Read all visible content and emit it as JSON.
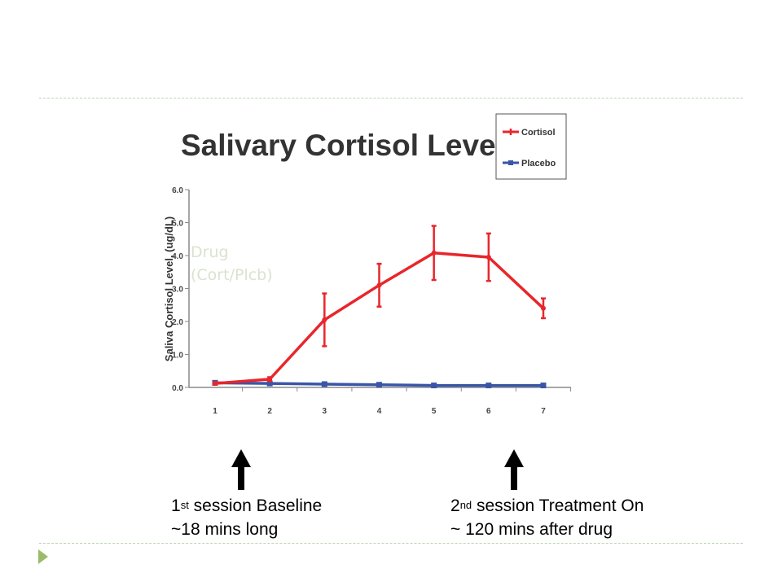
{
  "chart_data": {
    "type": "line",
    "title": "Salivary Cortisol Level",
    "xlabel": "",
    "ylabel": "Saliva Cortisol Level, (ug/dL)",
    "x": [
      1,
      2,
      3,
      4,
      5,
      6,
      7
    ],
    "xtick_labels": [
      "1",
      "2",
      "3",
      "4",
      "5",
      "6",
      "7"
    ],
    "ytick_labels": [
      "0.0",
      "1.0",
      "2.0",
      "3.0",
      "4.0",
      "5.0",
      "6.0"
    ],
    "ylim": [
      0,
      6
    ],
    "grid": false,
    "legend_position": "top-right",
    "series": [
      {
        "name": "Cortisol",
        "color": "#e8262b",
        "values": [
          0.12,
          0.25,
          2.05,
          3.1,
          4.08,
          3.95,
          2.4
        ],
        "error": [
          0.04,
          0.06,
          0.8,
          0.65,
          0.82,
          0.72,
          0.3
        ]
      },
      {
        "name": "Placebo",
        "color": "#3a55a8",
        "values": [
          0.14,
          0.12,
          0.1,
          0.08,
          0.06,
          0.06,
          0.06
        ],
        "error": [
          0,
          0,
          0,
          0,
          0,
          0,
          0
        ]
      }
    ]
  },
  "annotations": {
    "drug_line1": "Drug",
    "drug_line2": "(Cort/Plcb)"
  },
  "captions": {
    "first": {
      "ordinal_number": "1",
      "ordinal_suffix": "st",
      "line1_rest": " session Baseline",
      "line2": "~18 mins long"
    },
    "second": {
      "ordinal_number": "2",
      "ordinal_suffix": "nd",
      "line1_rest": " session Treatment On",
      "line2": "~ 120 mins after drug"
    }
  },
  "icons": {
    "bullet": "triangle-bullet-icon",
    "arrow": "up-arrow-icon"
  },
  "colors": {
    "rule": "#b9d3b4",
    "bullet": "#9bbb6a",
    "drug_text": "#d9e3cf"
  }
}
